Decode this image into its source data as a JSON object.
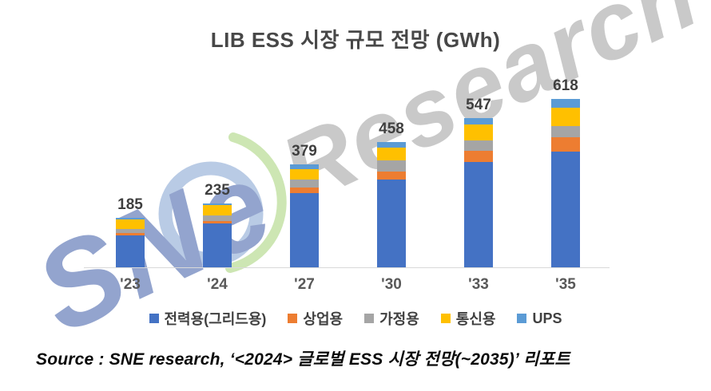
{
  "title": "LIB ESS 시장 규모 전망 (GWh)",
  "source_line": "Source : SNE research, ‘<2024> 글로벌 ESS 시장 전망(~2035)’ 리포트",
  "watermark": {
    "brand": "SNe",
    "word": "Research",
    "brand_color": "#93a4ce",
    "word_color": "#c9c9c9",
    "ring_color": "#b9cbe5",
    "leaf_color": "#cde6b3"
  },
  "chart_data": {
    "type": "bar",
    "stacked": true,
    "title": "LIB ESS 시장 규모 전망 (GWh)",
    "unit": "GWh",
    "xlabel": "",
    "ylabel": "",
    "ylim": [
      0,
      618
    ],
    "grid": false,
    "legend_position": "bottom",
    "value_labels": "total-above-each-bar",
    "categories": [
      "'23",
      "'24",
      "'27",
      "'30",
      "'33",
      "'35"
    ],
    "totals": [
      185,
      235,
      379,
      458,
      547,
      618
    ],
    "series": [
      {
        "name": "전력용(그리드용)",
        "color": "#4472C4",
        "values": [
          118,
          160,
          272,
          320,
          385,
          424
        ]
      },
      {
        "name": "상업용",
        "color": "#ED7D31",
        "values": [
          10,
          10,
          20,
          29,
          41,
          53
        ]
      },
      {
        "name": "가정용",
        "color": "#A5A5A5",
        "values": [
          16,
          21,
          30,
          42,
          39,
          42
        ]
      },
      {
        "name": "통신용",
        "color": "#FFC000",
        "values": [
          34,
          37,
          39,
          46,
          58,
          67
        ]
      },
      {
        "name": "UPS",
        "color": "#5B9BD5",
        "values": [
          7,
          7,
          18,
          21,
          24,
          32
        ]
      }
    ]
  }
}
